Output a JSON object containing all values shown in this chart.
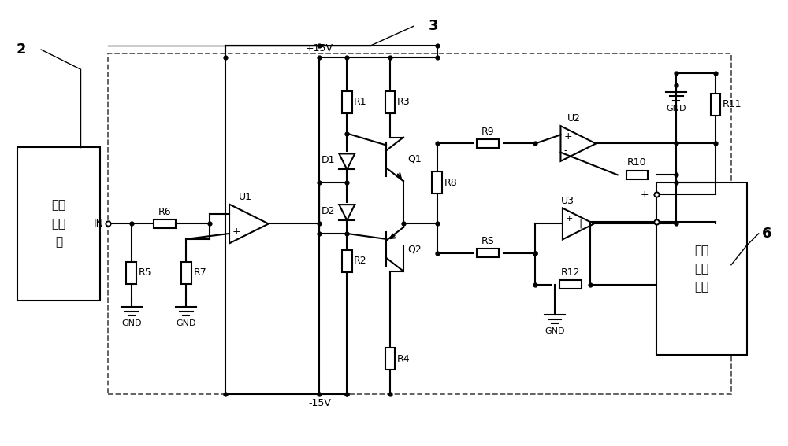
{
  "bg_color": "#ffffff",
  "line_color": "#000000",
  "fig_width": 10.0,
  "fig_height": 5.67,
  "font_size": 9,
  "font_size_label": 13,
  "font_size_comp": 11,
  "box1_text": "信号\n发生\n器",
  "box6_text": "锂离\n子电\n池组",
  "plus15v": "+15V",
  "minus15v": "-15V",
  "gnd_text": "GND",
  "in_label": "IN",
  "label_2": "2",
  "label_3": "3",
  "label_6": "6"
}
